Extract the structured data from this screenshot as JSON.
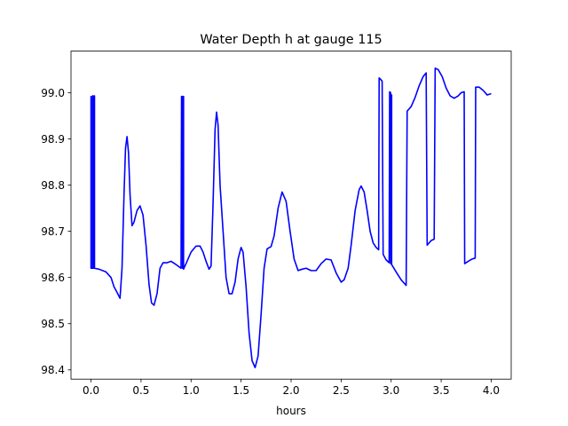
{
  "chart_data": {
    "type": "line",
    "title": "Water Depth h at gauge 115",
    "xlabel": "hours",
    "ylabel": "",
    "xlim": [
      -0.2,
      4.2
    ],
    "ylim": [
      98.38,
      99.09
    ],
    "xticks": [
      0.0,
      0.5,
      1.0,
      1.5,
      2.0,
      2.5,
      3.0,
      3.5,
      4.0
    ],
    "xtick_labels": [
      "0.0",
      "0.5",
      "1.0",
      "1.5",
      "2.0",
      "2.5",
      "3.0",
      "3.5",
      "4.0"
    ],
    "yticks": [
      98.4,
      98.5,
      98.6,
      98.7,
      98.8,
      98.9,
      99.0
    ],
    "ytick_labels": [
      "98.4",
      "98.5",
      "98.6",
      "98.7",
      "98.8",
      "98.9",
      "99.0"
    ],
    "grid": false,
    "legend": "none",
    "series": [
      {
        "color": "#0000ff",
        "points": [
          [
            0.0,
            98.993
          ],
          [
            0.0,
            98.62
          ],
          [
            0.015,
            98.62
          ],
          [
            0.015,
            98.993
          ],
          [
            0.02,
            98.993
          ],
          [
            0.02,
            98.62
          ],
          [
            0.03,
            98.62
          ],
          [
            0.03,
            98.993
          ],
          [
            0.035,
            98.993
          ],
          [
            0.035,
            98.62
          ],
          [
            0.08,
            98.618
          ],
          [
            0.15,
            98.612
          ],
          [
            0.2,
            98.6
          ],
          [
            0.23,
            98.58
          ],
          [
            0.26,
            98.568
          ],
          [
            0.29,
            98.555
          ],
          [
            0.31,
            98.62
          ],
          [
            0.33,
            98.78
          ],
          [
            0.345,
            98.88
          ],
          [
            0.36,
            98.905
          ],
          [
            0.375,
            98.87
          ],
          [
            0.39,
            98.78
          ],
          [
            0.41,
            98.712
          ],
          [
            0.43,
            98.72
          ],
          [
            0.46,
            98.745
          ],
          [
            0.49,
            98.755
          ],
          [
            0.52,
            98.735
          ],
          [
            0.55,
            98.67
          ],
          [
            0.58,
            98.585
          ],
          [
            0.605,
            98.545
          ],
          [
            0.63,
            98.54
          ],
          [
            0.66,
            98.565
          ],
          [
            0.69,
            98.62
          ],
          [
            0.72,
            98.632
          ],
          [
            0.76,
            98.632
          ],
          [
            0.8,
            98.635
          ],
          [
            0.85,
            98.628
          ],
          [
            0.9,
            98.62
          ],
          [
            0.905,
            98.992
          ],
          [
            0.915,
            98.992
          ],
          [
            0.915,
            98.62
          ],
          [
            0.92,
            98.992
          ],
          [
            0.925,
            98.992
          ],
          [
            0.925,
            98.618
          ],
          [
            0.96,
            98.635
          ],
          [
            1.0,
            98.655
          ],
          [
            1.05,
            98.668
          ],
          [
            1.09,
            98.668
          ],
          [
            1.12,
            98.655
          ],
          [
            1.15,
            98.635
          ],
          [
            1.18,
            98.618
          ],
          [
            1.2,
            98.625
          ],
          [
            1.22,
            98.76
          ],
          [
            1.24,
            98.92
          ],
          [
            1.255,
            98.958
          ],
          [
            1.27,
            98.93
          ],
          [
            1.29,
            98.8
          ],
          [
            1.32,
            98.7
          ],
          [
            1.35,
            98.6
          ],
          [
            1.38,
            98.565
          ],
          [
            1.41,
            98.565
          ],
          [
            1.44,
            98.59
          ],
          [
            1.47,
            98.64
          ],
          [
            1.5,
            98.665
          ],
          [
            1.52,
            98.655
          ],
          [
            1.55,
            98.58
          ],
          [
            1.58,
            98.48
          ],
          [
            1.61,
            98.42
          ],
          [
            1.64,
            98.405
          ],
          [
            1.67,
            98.43
          ],
          [
            1.7,
            98.52
          ],
          [
            1.73,
            98.62
          ],
          [
            1.76,
            98.662
          ],
          [
            1.8,
            98.667
          ],
          [
            1.83,
            98.69
          ],
          [
            1.87,
            98.75
          ],
          [
            1.91,
            98.785
          ],
          [
            1.95,
            98.765
          ],
          [
            1.99,
            98.7
          ],
          [
            2.03,
            98.64
          ],
          [
            2.07,
            98.615
          ],
          [
            2.11,
            98.618
          ],
          [
            2.15,
            98.62
          ],
          [
            2.2,
            98.615
          ],
          [
            2.25,
            98.615
          ],
          [
            2.3,
            98.63
          ],
          [
            2.35,
            98.64
          ],
          [
            2.4,
            98.638
          ],
          [
            2.45,
            98.61
          ],
          [
            2.5,
            98.59
          ],
          [
            2.53,
            98.595
          ],
          [
            2.57,
            98.62
          ],
          [
            2.6,
            98.67
          ],
          [
            2.64,
            98.745
          ],
          [
            2.68,
            98.79
          ],
          [
            2.7,
            98.798
          ],
          [
            2.73,
            98.785
          ],
          [
            2.76,
            98.745
          ],
          [
            2.79,
            98.7
          ],
          [
            2.82,
            98.675
          ],
          [
            2.85,
            98.665
          ],
          [
            2.875,
            98.66
          ],
          [
            2.88,
            99.032
          ],
          [
            2.89,
            99.03
          ],
          [
            2.91,
            99.025
          ],
          [
            2.92,
            98.65
          ],
          [
            2.95,
            98.638
          ],
          [
            2.98,
            98.632
          ],
          [
            2.985,
            99.002
          ],
          [
            2.995,
            99.0
          ],
          [
            2.995,
            98.63
          ],
          [
            3.0,
            98.995
          ],
          [
            3.005,
            98.995
          ],
          [
            3.005,
            98.628
          ],
          [
            3.05,
            98.612
          ],
          [
            3.1,
            98.595
          ],
          [
            3.15,
            98.583
          ],
          [
            3.16,
            98.96
          ],
          [
            3.2,
            98.97
          ],
          [
            3.24,
            98.99
          ],
          [
            3.28,
            99.015
          ],
          [
            3.32,
            99.035
          ],
          [
            3.35,
            99.043
          ],
          [
            3.36,
            98.67
          ],
          [
            3.4,
            98.68
          ],
          [
            3.43,
            98.683
          ],
          [
            3.44,
            99.053
          ],
          [
            3.47,
            99.05
          ],
          [
            3.51,
            99.035
          ],
          [
            3.55,
            99.01
          ],
          [
            3.59,
            98.993
          ],
          [
            3.63,
            98.988
          ],
          [
            3.67,
            98.993
          ],
          [
            3.7,
            99.0
          ],
          [
            3.73,
            99.002
          ],
          [
            3.735,
            98.63
          ],
          [
            3.77,
            98.635
          ],
          [
            3.81,
            98.64
          ],
          [
            3.84,
            98.642
          ],
          [
            3.845,
            99.012
          ],
          [
            3.88,
            99.012
          ],
          [
            3.92,
            99.005
          ],
          [
            3.96,
            98.995
          ],
          [
            4.0,
            98.998
          ]
        ]
      }
    ]
  }
}
